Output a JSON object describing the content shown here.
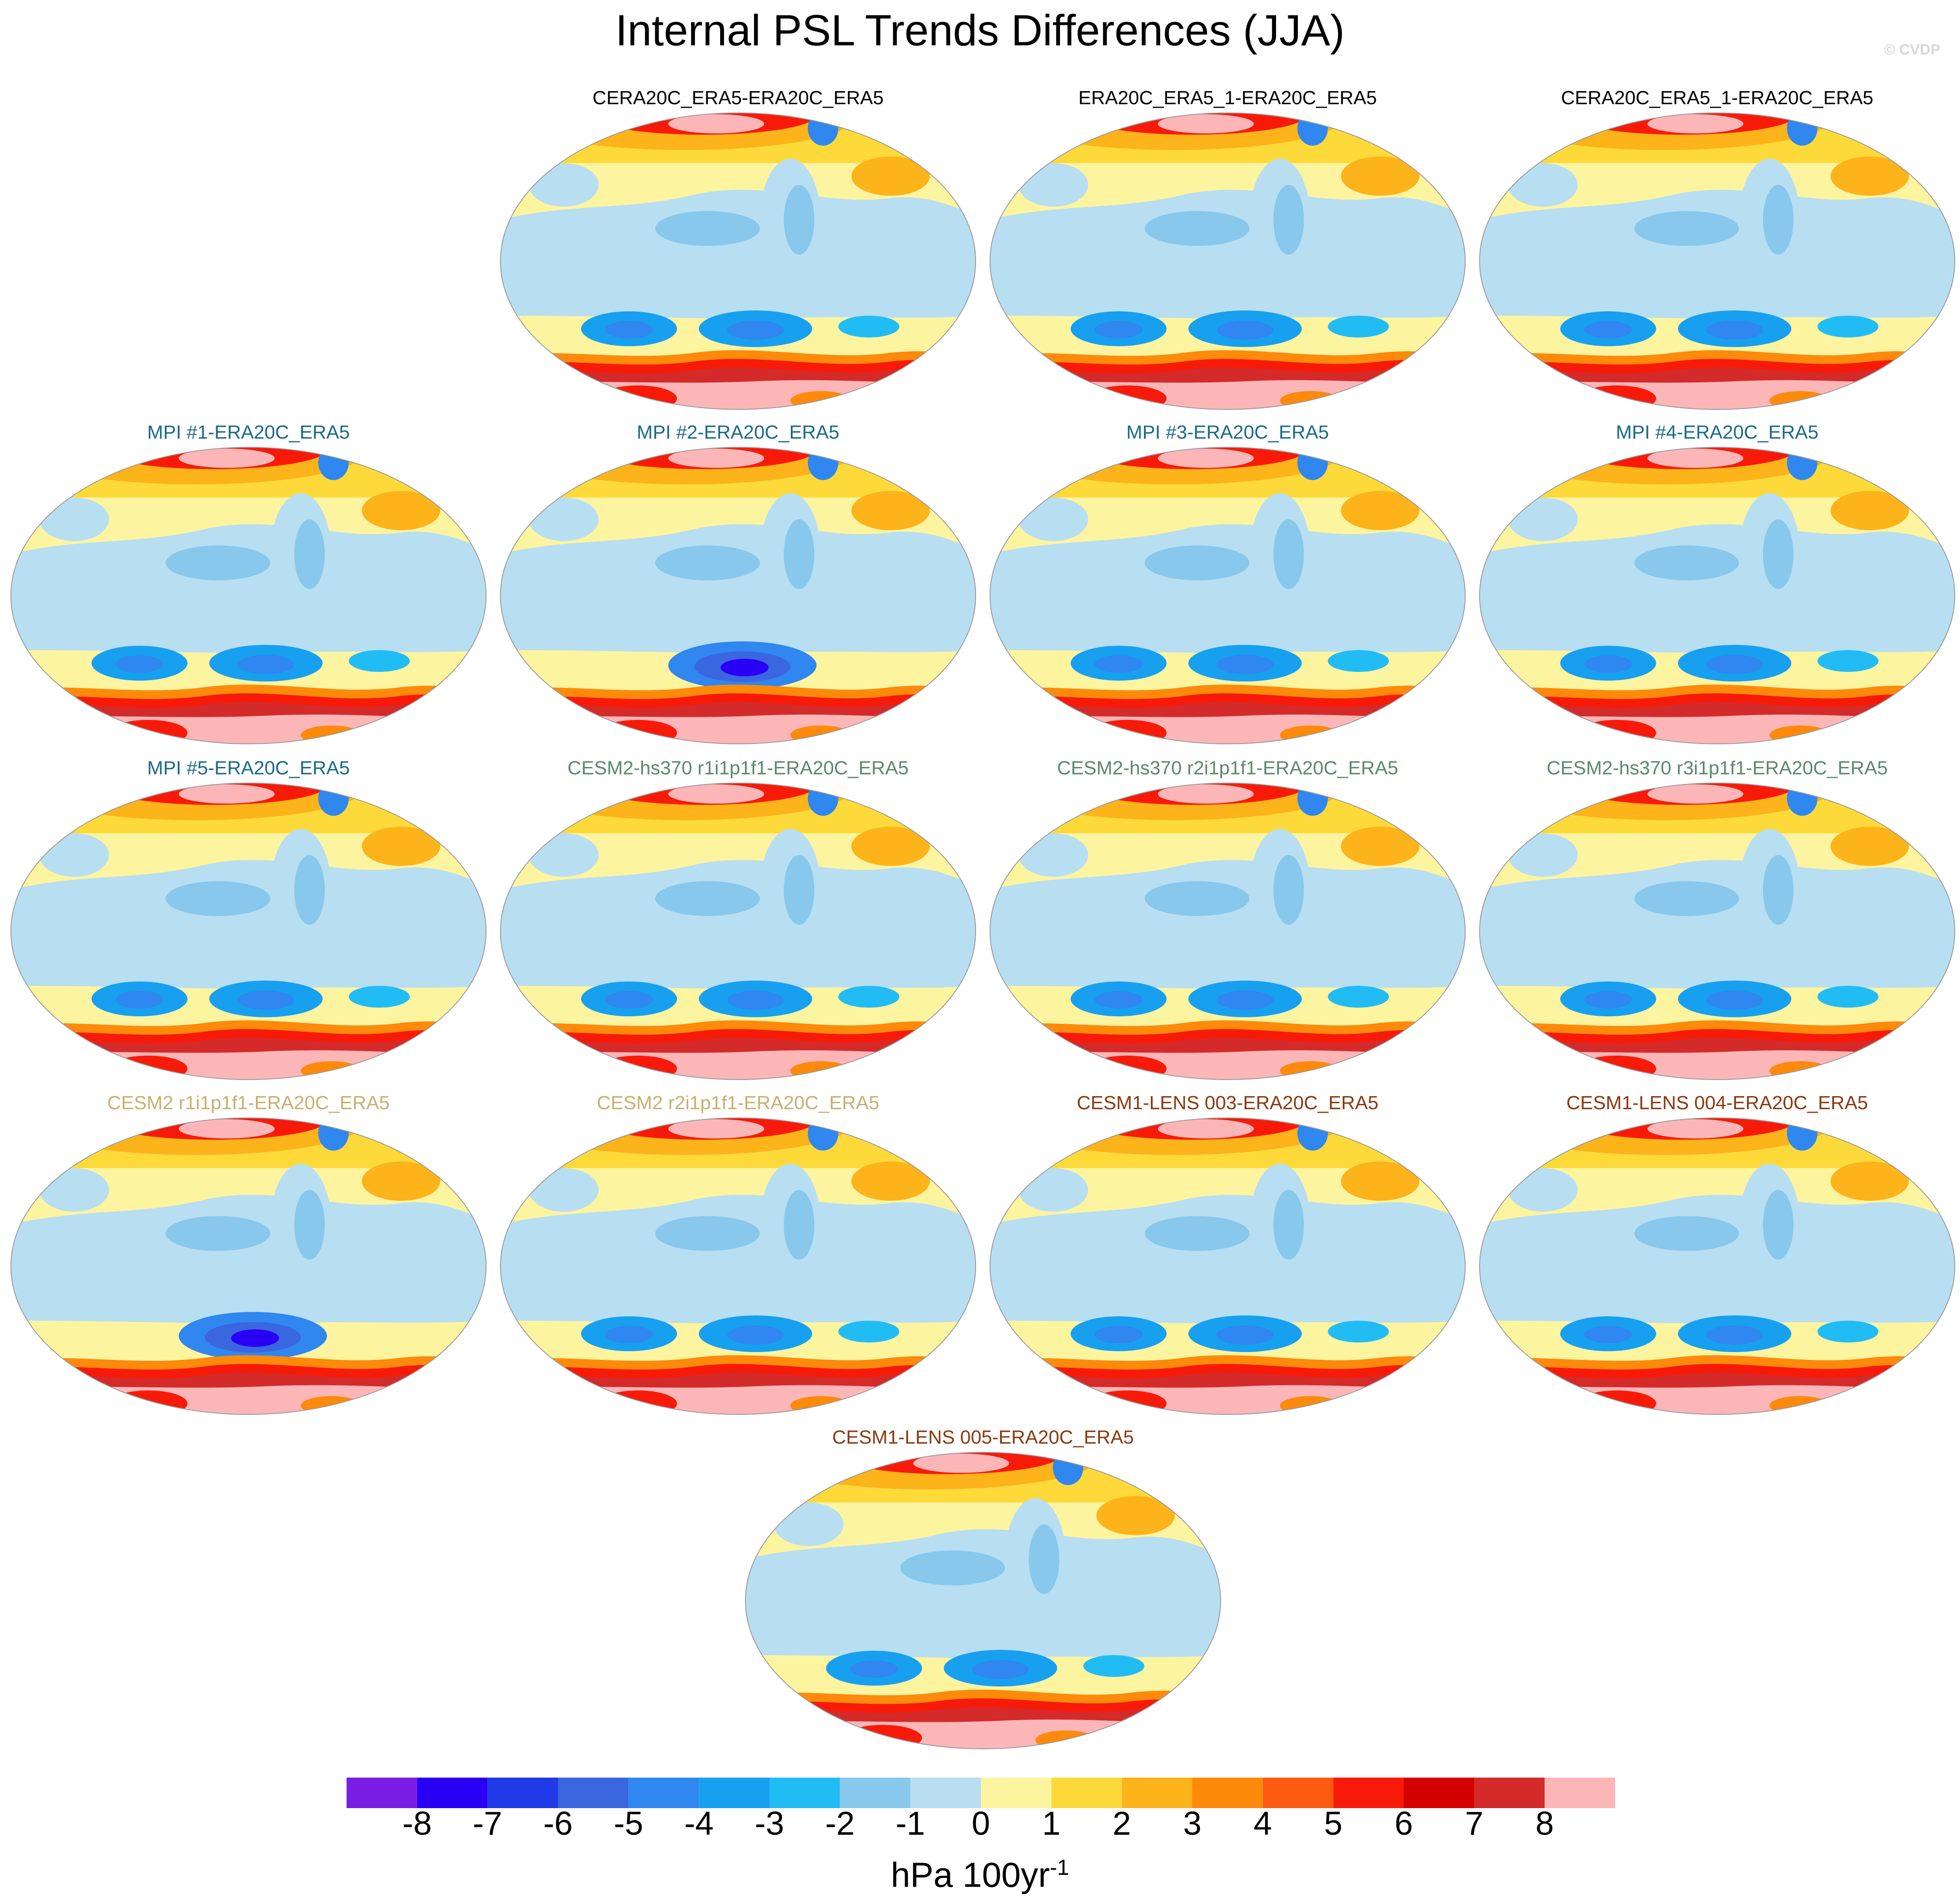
{
  "title": "Internal PSL Trends Differences (JJA)",
  "watermark": "© CVDP",
  "colorbar": {
    "levels": [
      "-8",
      "-7",
      "-6",
      "-5",
      "-4",
      "-3",
      "-2",
      "-1",
      "0",
      "1",
      "2",
      "3",
      "4",
      "5",
      "6",
      "7",
      "8"
    ],
    "colors": [
      "#7a1ee6",
      "#2a00f5",
      "#1f3ae6",
      "#3a66e0",
      "#2f87ef",
      "#17a0ef",
      "#22bcf5",
      "#88c8ec",
      "#b8def2",
      "#fdf4a0",
      "#fdda3a",
      "#fdb31a",
      "#fd8a0a",
      "#fd5a12",
      "#f81a08",
      "#d40000",
      "#d42a2a",
      "#fdb6b8"
    ],
    "units_main": "hPa 100yr",
    "units_exp": "-1"
  },
  "panels": [
    {
      "title": "CERA20C_ERA5-ERA20C_ERA5",
      "color": "#000000",
      "variant": "observational"
    },
    {
      "title": "ERA20C_ERA5_1-ERA20C_ERA5",
      "color": "#000000",
      "variant": "observational"
    },
    {
      "title": "CERA20C_ERA5_1-ERA20C_ERA5",
      "color": "#000000",
      "variant": "observational"
    },
    {
      "title": "MPI #1-ERA20C_ERA5",
      "color": "#1a6a8a",
      "variant": "model"
    },
    {
      "title": "MPI #2-ERA20C_ERA5",
      "color": "#1a6a8a",
      "variant": "model-deep"
    },
    {
      "title": "MPI #3-ERA20C_ERA5",
      "color": "#1a6a8a",
      "variant": "model"
    },
    {
      "title": "MPI #4-ERA20C_ERA5",
      "color": "#1a6a8a",
      "variant": "model"
    },
    {
      "title": "MPI #5-ERA20C_ERA5",
      "color": "#1a6a8a",
      "variant": "model"
    },
    {
      "title": "CESM2-hs370 r1i1p1f1-ERA20C_ERA5",
      "color": "#5a8a6a",
      "variant": "model"
    },
    {
      "title": "CESM2-hs370 r2i1p1f1-ERA20C_ERA5",
      "color": "#5a8a6a",
      "variant": "model"
    },
    {
      "title": "CESM2-hs370 r3i1p1f1-ERA20C_ERA5",
      "color": "#5a8a6a",
      "variant": "model"
    },
    {
      "title": "CESM2 r1i1p1f1-ERA20C_ERA5",
      "color": "#c8b070",
      "variant": "model-deep"
    },
    {
      "title": "CESM2 r2i1p1f1-ERA20C_ERA5",
      "color": "#c8b070",
      "variant": "model"
    },
    {
      "title": "CESM1-LENS 003-ERA20C_ERA5",
      "color": "#8a3a10",
      "variant": "model"
    },
    {
      "title": "CESM1-LENS 004-ERA20C_ERA5",
      "color": "#8a3a10",
      "variant": "model"
    },
    {
      "title": "CESM1-LENS 005-ERA20C_ERA5",
      "color": "#8a3a10",
      "variant": "model"
    }
  ]
}
